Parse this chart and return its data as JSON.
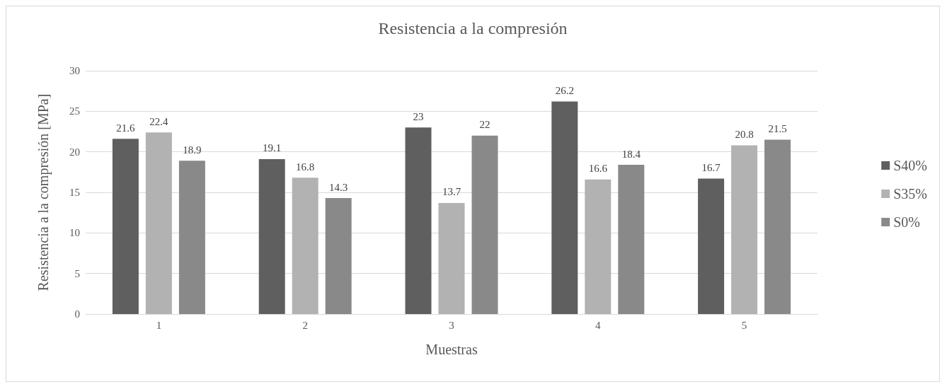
{
  "chart_data": {
    "type": "bar",
    "title": "Resistencia a la compresión",
    "xlabel": "Muestras",
    "ylabel": "Resistencia a la compresión [MPa]",
    "categories": [
      "1",
      "2",
      "3",
      "4",
      "5"
    ],
    "series": [
      {
        "name": "S40%",
        "color": "#5f5f5f",
        "values": [
          21.6,
          19.1,
          23,
          26.2,
          16.7
        ]
      },
      {
        "name": "S35%",
        "color": "#b2b2b2",
        "values": [
          22.4,
          16.8,
          13.7,
          16.6,
          20.8
        ]
      },
      {
        "name": "S0%",
        "color": "#898989",
        "values": [
          18.9,
          14.3,
          22,
          18.4,
          21.5
        ]
      }
    ],
    "ylim": [
      0,
      30
    ],
    "yticks": [
      0,
      5,
      10,
      15,
      20,
      25,
      30
    ],
    "grid": "y",
    "legend": "right",
    "data_labels": true
  }
}
